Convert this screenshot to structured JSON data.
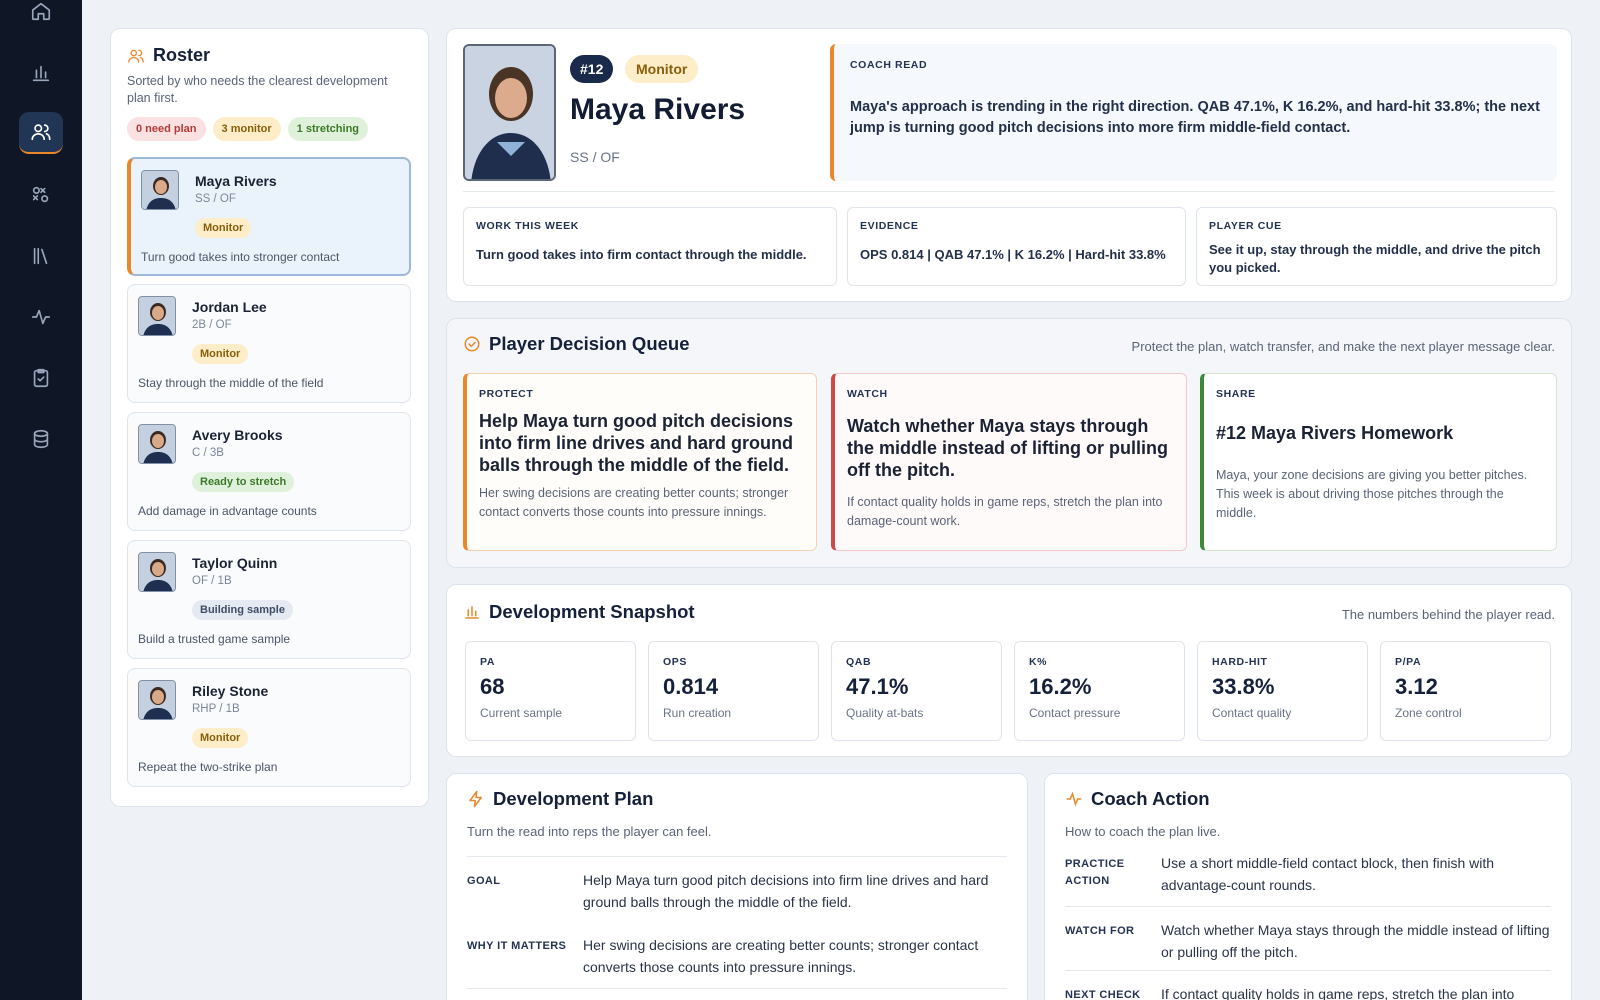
{
  "nav": [
    "home-icon",
    "bar-chart-icon",
    "users-icon",
    "swap-icon",
    "library-icon",
    "activity-icon",
    "clipboard-icon",
    "database-icon"
  ],
  "roster": {
    "title": "Roster",
    "subtitle": "Sorted by who needs the clearest development plan first.",
    "filters": {
      "need_plan": "0 need plan",
      "monitor": "3 monitor",
      "stretching": "1 stretching"
    },
    "players": [
      {
        "name": "Maya Rivers",
        "pos": "SS / OF",
        "badge": "Monitor",
        "note": "Turn good takes into stronger contact"
      },
      {
        "name": "Jordan Lee",
        "pos": "2B / OF",
        "badge": "Monitor",
        "note": "Stay through the middle of the field"
      },
      {
        "name": "Avery Brooks",
        "pos": "C / 3B",
        "badge": "Ready to stretch",
        "note": "Add damage in advantage counts"
      },
      {
        "name": "Taylor Quinn",
        "pos": "OF / 1B",
        "badge": "Building sample",
        "note": "Build a trusted game sample"
      },
      {
        "name": "Riley Stone",
        "pos": "RHP / 1B",
        "badge": "Monitor",
        "note": "Repeat the two-strike plan"
      }
    ]
  },
  "profile": {
    "number": "#12",
    "status": "Monitor",
    "name": "Maya Rivers",
    "position": "SS / OF",
    "coach_read_label": "COACH READ",
    "coach_read": "Maya's approach is trending in the right direction. QAB 47.1%, K 16.2%, and hard-hit 33.8%; the next jump is turning good pitch decisions into more firm middle-field contact.",
    "work_label": "WORK THIS WEEK",
    "work": "Turn good takes into firm contact through the middle.",
    "evidence_label": "EVIDENCE",
    "evidence": "OPS 0.814 | QAB 47.1% | K 16.2% | Hard-hit 33.8%",
    "cue_label": "PLAYER CUE",
    "cue": "See it up, stay through the middle, and drive the pitch you picked."
  },
  "queue": {
    "title": "Player Decision Queue",
    "hint": "Protect the plan, watch transfer, and make the next player message clear.",
    "cards": [
      {
        "label": "PROTECT",
        "head": "Help Maya turn good pitch decisions into firm line drives and hard ground balls through the middle of the field.",
        "text": "Her swing decisions are creating better counts; stronger contact converts those counts into pressure innings."
      },
      {
        "label": "WATCH",
        "head": "Watch whether Maya stays through the middle instead of lifting or pulling off the pitch.",
        "text": "If contact quality holds in game reps, stretch the plan into damage-count work."
      },
      {
        "label": "SHARE",
        "head": "#12 Maya Rivers Homework",
        "text": "Maya, your zone decisions are giving you better pitches. This week is about driving those pitches through the middle."
      }
    ]
  },
  "snapshot": {
    "title": "Development Snapshot",
    "hint": "The numbers behind the player read.",
    "stats": [
      {
        "label": "PA",
        "value": "68",
        "caption": "Current sample"
      },
      {
        "label": "OPS",
        "value": "0.814",
        "caption": "Run creation"
      },
      {
        "label": "QAB",
        "value": "47.1%",
        "caption": "Quality at-bats"
      },
      {
        "label": "K%",
        "value": "16.2%",
        "caption": "Contact pressure"
      },
      {
        "label": "HARD-HIT",
        "value": "33.8%",
        "caption": "Contact quality"
      },
      {
        "label": "P/PA",
        "value": "3.12",
        "caption": "Zone control"
      }
    ]
  },
  "plan": {
    "title": "Development Plan",
    "subtitle": "Turn the read into reps the player can feel.",
    "rows": [
      {
        "key": "GOAL",
        "value": "Help Maya turn good pitch decisions into firm line drives and hard ground balls through the middle of the field."
      },
      {
        "key": "WHY IT MATTERS",
        "value": "Her swing decisions are creating better counts; stronger contact converts those counts into pressure innings."
      }
    ]
  },
  "action": {
    "title": "Coach Action",
    "subtitle": "How to coach the plan live.",
    "rows": [
      {
        "key": "PRACTICE ACTION",
        "value": "Use a short middle-field contact block, then finish with advantage-count rounds."
      },
      {
        "key": "WATCH FOR",
        "value": "Watch whether Maya stays through the middle instead of lifting or pulling off the pitch."
      },
      {
        "key": "NEXT CHECK",
        "value": "If contact quality holds in game reps, stretch the plan into damage-count work."
      }
    ]
  },
  "colors": {
    "accent": "#e9872b",
    "nav_bg": "#0f1626",
    "watch": "#d04848",
    "share": "#3a8a3a"
  }
}
